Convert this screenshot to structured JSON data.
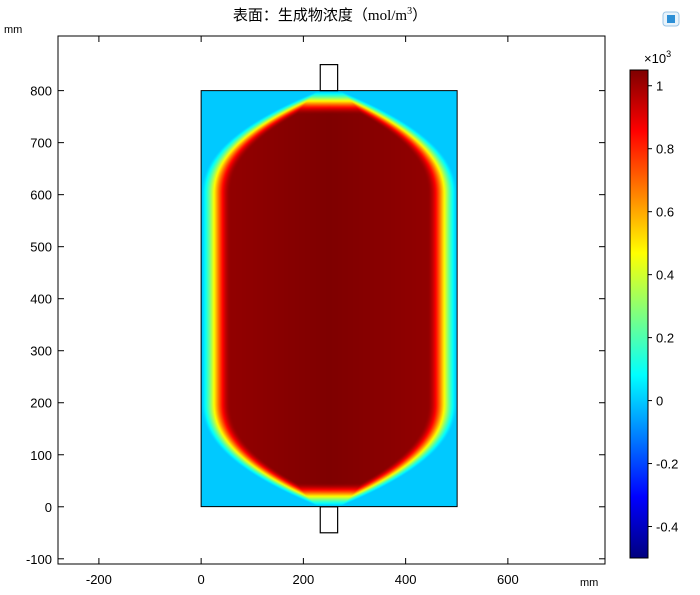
{
  "chart_data": {
    "type": "heatmap",
    "title": "表面：生成物浓度（mol/m",
    "title_superscript": "3",
    "title_suffix": "）",
    "x_unit": "mm",
    "y_unit": "mm",
    "xlim": [
      -280,
      790
    ],
    "ylim": [
      -110,
      905
    ],
    "x_ticks": [
      -200,
      0,
      200,
      400,
      600
    ],
    "y_ticks": [
      -100,
      0,
      100,
      200,
      300,
      400,
      500,
      600,
      700,
      800
    ],
    "domain": {
      "x": [
        0,
        500
      ],
      "y": [
        0,
        800
      ]
    },
    "inlet": {
      "x": [
        233,
        267
      ],
      "y": [
        800,
        850
      ]
    },
    "outlet": {
      "x": [
        233,
        267
      ],
      "y": [
        -50,
        0
      ]
    },
    "field_peak": 1050,
    "field_edge_min": 0,
    "colorbar": {
      "multiplier_base": "×10",
      "multiplier_exp": "3",
      "min": -0.5,
      "max": 1.05,
      "ticks": [
        1,
        0.8,
        0.6,
        0.4,
        0.2,
        0,
        -0.2,
        -0.4
      ],
      "tick_labels": [
        "1",
        "0.8",
        "0.6",
        "0.4",
        "0.2",
        "0",
        "-0.2",
        "-0.4"
      ],
      "colormap": [
        "#00007f",
        "#0000ff",
        "#007fff",
        "#00ffff",
        "#7fff7f",
        "#ffff00",
        "#ff7f00",
        "#ff0000",
        "#7f0000"
      ]
    }
  }
}
